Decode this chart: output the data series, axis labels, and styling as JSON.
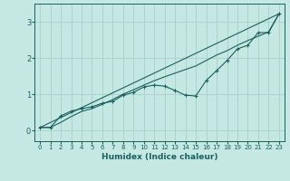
{
  "xlabel": "Humidex (Indice chaleur)",
  "bg_color": "#c5e8e3",
  "grid_color": "#aad0ca",
  "line_color": "#1a6060",
  "xlim": [
    -0.5,
    23.5
  ],
  "ylim": [
    -0.3,
    3.5
  ],
  "xticks": [
    0,
    1,
    2,
    3,
    4,
    5,
    6,
    7,
    8,
    9,
    10,
    11,
    12,
    13,
    14,
    15,
    16,
    17,
    18,
    19,
    20,
    21,
    22,
    23
  ],
  "yticks": [
    0,
    1,
    2,
    3
  ],
  "line1_x": [
    0,
    1,
    2,
    3,
    4,
    5,
    6,
    7,
    8,
    9,
    10,
    11,
    12,
    13,
    14,
    15,
    16,
    17,
    18,
    19,
    20,
    21,
    22,
    23
  ],
  "line1_y": [
    0.08,
    0.08,
    0.4,
    0.53,
    0.6,
    0.65,
    0.75,
    0.8,
    0.97,
    1.05,
    1.2,
    1.25,
    1.22,
    1.1,
    0.97,
    0.95,
    1.38,
    1.65,
    1.93,
    2.25,
    2.35,
    2.7,
    2.7,
    3.22
  ],
  "line2_x": [
    0,
    23
  ],
  "line2_y": [
    0.08,
    3.22
  ],
  "line3_x": [
    0,
    1,
    2,
    3,
    4,
    5,
    6,
    7,
    8,
    9,
    10,
    11,
    12,
    13,
    14,
    15,
    16,
    17,
    18,
    19,
    20,
    21,
    22,
    23
  ],
  "line3_y": [
    0.08,
    0.08,
    0.22,
    0.38,
    0.52,
    0.6,
    0.72,
    0.85,
    1.0,
    1.12,
    1.25,
    1.37,
    1.48,
    1.58,
    1.68,
    1.78,
    1.93,
    2.08,
    2.2,
    2.35,
    2.48,
    2.6,
    2.72,
    3.22
  ]
}
